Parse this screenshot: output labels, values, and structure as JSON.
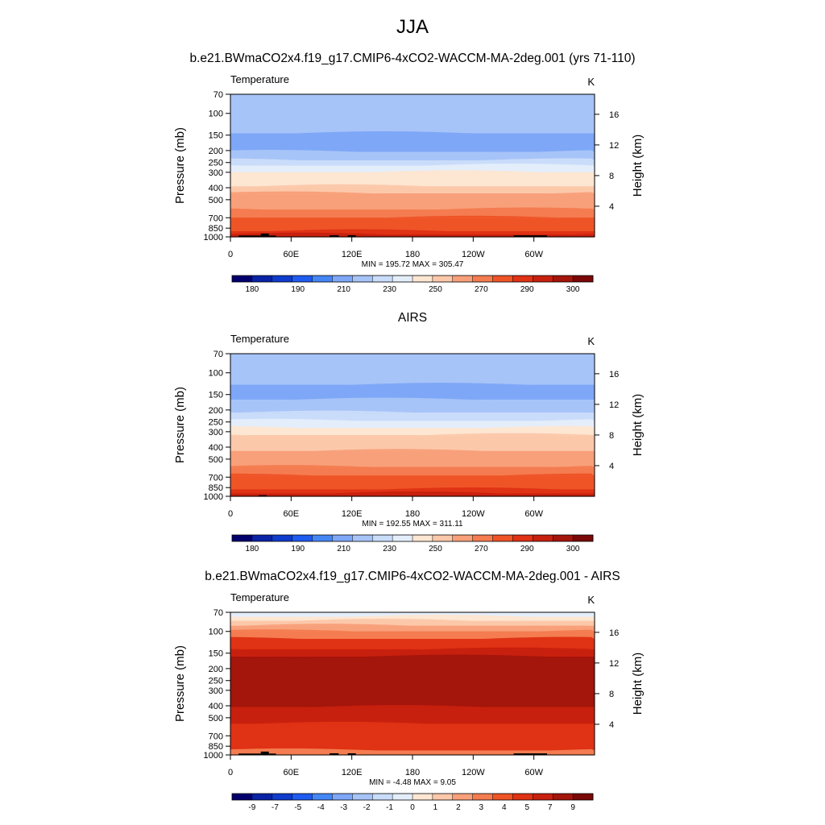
{
  "figure": {
    "title": "JJA",
    "subtitle_top": "b.e21.BWmaCO2x4.f19_g17.CMIP6-4xCO2-WACCM-MA-2deg.001 (yrs 71-110)",
    "subtitle_mid": "AIRS",
    "subtitle_bottom": "b.e21.BWmaCO2x4.f19_g17.CMIP6-4xCO2-WACCM-MA-2deg.001 - AIRS"
  },
  "chart_data": [
    {
      "type": "heatmap",
      "name": "model",
      "title": "Temperature",
      "units": "K",
      "ylabel": "Pressure (mb)",
      "ylabel_right": "Height (km)",
      "x_ticks": [
        "0",
        "60E",
        "120E",
        "180",
        "120W",
        "60W"
      ],
      "x_tick_lons": [
        0,
        60,
        120,
        180,
        240,
        300
      ],
      "xlim": [
        0,
        360
      ],
      "y_ticks": [
        "70",
        "100",
        "150",
        "200",
        "250",
        "300",
        "400",
        "500",
        "700",
        "850",
        "1000"
      ],
      "y_tick_values": [
        70,
        100,
        150,
        200,
        250,
        300,
        400,
        500,
        700,
        850,
        1000
      ],
      "ylim": [
        1000,
        70
      ],
      "y_right_ticks": [
        "4",
        "8",
        "12",
        "16"
      ],
      "y_right_values": [
        4,
        8,
        12,
        16
      ],
      "stats": "MIN = 195.72  MAX = 305.47",
      "min": 195.72,
      "max": 305.47,
      "colorbar_labels": [
        "180",
        "190",
        "210",
        "230",
        "250",
        "270",
        "290",
        "300"
      ],
      "colorbar_colors": [
        "#03006e",
        "#0a23a6",
        "#0f3ccc",
        "#1e5bf0",
        "#4586f5",
        "#7ea7f7",
        "#a7c4f8",
        "#c9dcfa",
        "#e4eefb",
        "#fde6d2",
        "#fcc8aa",
        "#f8a07a",
        "#f47c50",
        "#ef5427",
        "#e03214",
        "#c8200e",
        "#a4150b",
        "#7a0807"
      ],
      "colorbar_levels": [
        175,
        180,
        185,
        190,
        200,
        210,
        220,
        230,
        240,
        250,
        260,
        270,
        280,
        290,
        295,
        300,
        305
      ],
      "bands": [
        {
          "p": 70,
          "value": 212
        },
        {
          "p": 120,
          "value": 212
        },
        {
          "p": 145,
          "value": 207
        },
        {
          "p": 175,
          "value": 203
        },
        {
          "p": 205,
          "value": 210
        },
        {
          "p": 240,
          "value": 222
        },
        {
          "p": 265,
          "value": 232
        },
        {
          "p": 300,
          "value": 240
        },
        {
          "p": 345,
          "value": 248
        },
        {
          "p": 390,
          "value": 255
        },
        {
          "p": 445,
          "value": 262
        },
        {
          "p": 520,
          "value": 268
        },
        {
          "p": 600,
          "value": 275
        },
        {
          "p": 700,
          "value": 282
        },
        {
          "p": 800,
          "value": 287
        },
        {
          "p": 900,
          "value": 293
        },
        {
          "p": 960,
          "value": 298
        },
        {
          "p": 1000,
          "value": 302
        }
      ],
      "topography": [
        {
          "lon0": 8,
          "lon1": 30,
          "p": 975
        },
        {
          "lon0": 30,
          "lon1": 38,
          "p": 940
        },
        {
          "lon0": 38,
          "lon1": 45,
          "p": 975
        },
        {
          "lon0": 98,
          "lon1": 107,
          "p": 970
        },
        {
          "lon0": 116,
          "lon1": 124,
          "p": 970
        },
        {
          "lon0": 280,
          "lon1": 313,
          "p": 972
        }
      ]
    },
    {
      "type": "heatmap",
      "name": "obs",
      "title": "Temperature",
      "units": "K",
      "ylabel": "Pressure (mb)",
      "ylabel_right": "Height (km)",
      "x_ticks": [
        "0",
        "60E",
        "120E",
        "180",
        "120W",
        "60W"
      ],
      "x_tick_lons": [
        0,
        60,
        120,
        180,
        240,
        300
      ],
      "xlim": [
        0,
        360
      ],
      "y_ticks": [
        "70",
        "100",
        "150",
        "200",
        "250",
        "300",
        "400",
        "500",
        "700",
        "850",
        "1000"
      ],
      "y_tick_values": [
        70,
        100,
        150,
        200,
        250,
        300,
        400,
        500,
        700,
        850,
        1000
      ],
      "ylim": [
        1000,
        70
      ],
      "y_right_ticks": [
        "4",
        "8",
        "12",
        "16"
      ],
      "y_right_values": [
        4,
        8,
        12,
        16
      ],
      "stats": "MIN = 192.55  MAX = 311.11",
      "min": 192.55,
      "max": 311.11,
      "colorbar_labels": [
        "180",
        "190",
        "210",
        "230",
        "250",
        "270",
        "290",
        "300"
      ],
      "colorbar_colors": [
        "#03006e",
        "#0a23a6",
        "#0f3ccc",
        "#1e5bf0",
        "#4586f5",
        "#7ea7f7",
        "#a7c4f8",
        "#c9dcfa",
        "#e4eefb",
        "#fde6d2",
        "#fcc8aa",
        "#f8a07a",
        "#f47c50",
        "#ef5427",
        "#e03214",
        "#c8200e",
        "#a4150b",
        "#7a0807"
      ],
      "colorbar_levels": [
        175,
        180,
        185,
        190,
        200,
        210,
        220,
        230,
        240,
        250,
        260,
        270,
        280,
        290,
        295,
        300,
        305
      ],
      "bands": [
        {
          "p": 70,
          "value": 212
        },
        {
          "p": 125,
          "value": 207
        },
        {
          "p": 165,
          "value": 212
        },
        {
          "p": 210,
          "value": 222
        },
        {
          "p": 245,
          "value": 232
        },
        {
          "p": 280,
          "value": 242
        },
        {
          "p": 320,
          "value": 250
        },
        {
          "p": 370,
          "value": 256
        },
        {
          "p": 430,
          "value": 262
        },
        {
          "p": 500,
          "value": 268
        },
        {
          "p": 580,
          "value": 275
        },
        {
          "p": 680,
          "value": 282
        },
        {
          "p": 780,
          "value": 287
        },
        {
          "p": 880,
          "value": 293
        },
        {
          "p": 950,
          "value": 298
        },
        {
          "p": 1000,
          "value": 302
        }
      ],
      "topography": [
        {
          "lon0": 28,
          "lon1": 36,
          "p": 980
        }
      ]
    },
    {
      "type": "heatmap",
      "name": "difference",
      "title": "Temperature",
      "units": "K",
      "ylabel": "Pressure (mb)",
      "ylabel_right": "Height (km)",
      "x_ticks": [
        "0",
        "60E",
        "120E",
        "180",
        "120W",
        "60W"
      ],
      "x_tick_lons": [
        0,
        60,
        120,
        180,
        240,
        300
      ],
      "xlim": [
        0,
        360
      ],
      "y_ticks": [
        "70",
        "100",
        "150",
        "200",
        "250",
        "300",
        "400",
        "500",
        "700",
        "850",
        "1000"
      ],
      "y_tick_values": [
        70,
        100,
        150,
        200,
        250,
        300,
        400,
        500,
        700,
        850,
        1000
      ],
      "ylim": [
        1000,
        70
      ],
      "y_right_ticks": [
        "4",
        "8",
        "12",
        "16"
      ],
      "y_right_values": [
        4,
        8,
        12,
        16
      ],
      "stats": "MIN =  -4.48  MAX =   9.05",
      "min": -4.48,
      "max": 9.05,
      "colorbar_labels": [
        "-9",
        "-7",
        "-5",
        "-4",
        "-3",
        "-2",
        "-1",
        "0",
        "1",
        "2",
        "3",
        "4",
        "5",
        "7",
        "9"
      ],
      "colorbar_colors": [
        "#03006e",
        "#0a23a6",
        "#0f3ccc",
        "#1e5bf0",
        "#4586f5",
        "#7ea7f7",
        "#a7c4f8",
        "#c9dcfa",
        "#e4eefb",
        "#fde6d2",
        "#fcc8aa",
        "#f8a07a",
        "#f47c50",
        "#ef5427",
        "#e03214",
        "#c8200e",
        "#a4150b",
        "#7a0807"
      ],
      "colorbar_levels": [
        -9,
        -7,
        -5,
        -4,
        -3,
        -2,
        -1,
        0,
        1,
        2,
        3,
        4,
        5,
        7,
        9
      ],
      "bands": [
        {
          "p": 70,
          "value": -0.5
        },
        {
          "p": 76,
          "value": 0.5
        },
        {
          "p": 82,
          "value": 1.5
        },
        {
          "p": 90,
          "value": 2.5
        },
        {
          "p": 100,
          "value": 3.5
        },
        {
          "p": 115,
          "value": 4.5
        },
        {
          "p": 140,
          "value": 6
        },
        {
          "p": 160,
          "value": 8
        },
        {
          "p": 410,
          "value": 6
        },
        {
          "p": 560,
          "value": 4.5
        },
        {
          "p": 920,
          "value": 3.5
        },
        {
          "p": 1000,
          "value": 4.5
        }
      ],
      "topography": [
        {
          "lon0": 8,
          "lon1": 30,
          "p": 975
        },
        {
          "lon0": 30,
          "lon1": 38,
          "p": 940
        },
        {
          "lon0": 38,
          "lon1": 45,
          "p": 975
        },
        {
          "lon0": 98,
          "lon1": 107,
          "p": 970
        },
        {
          "lon0": 116,
          "lon1": 124,
          "p": 970
        },
        {
          "lon0": 280,
          "lon1": 313,
          "p": 972
        }
      ]
    }
  ]
}
